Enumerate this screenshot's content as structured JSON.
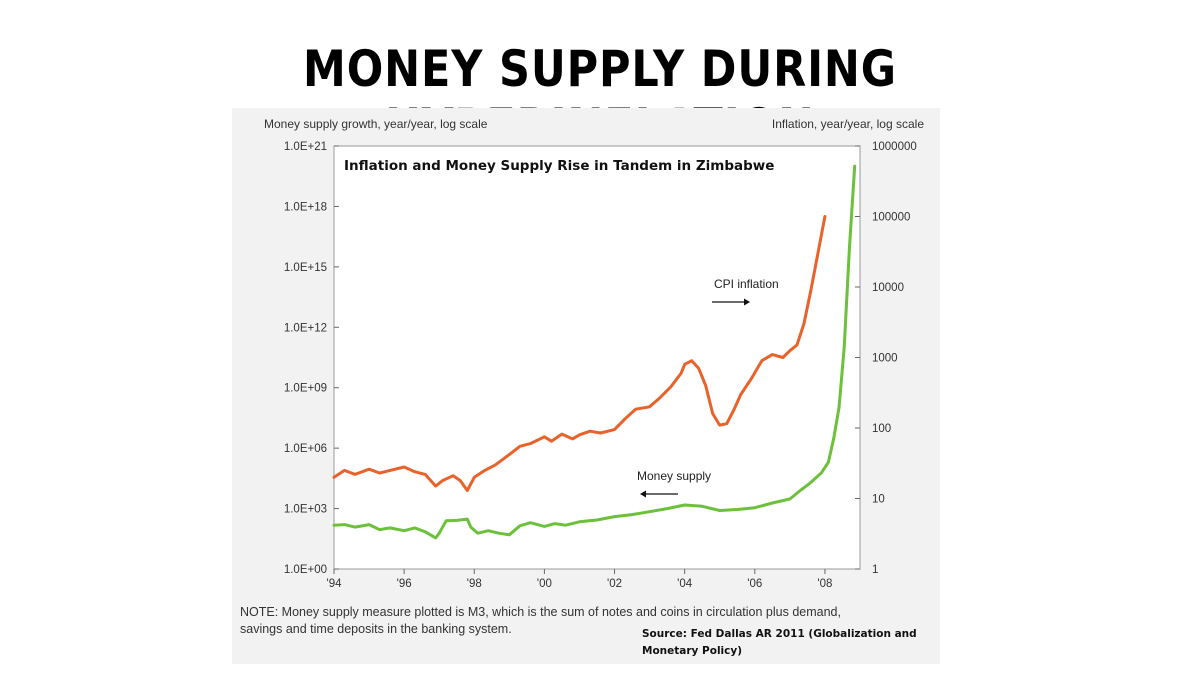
{
  "slide": {
    "title": "MONEY SUPPLY DURING HYPERINFLATION"
  },
  "chart_data": {
    "type": "line",
    "title": "Inflation and Money Supply Rise in Tandem in Zimbabwe",
    "left_axis_label": "Money supply growth, year/year, log scale",
    "right_axis_label": "Inflation, year/year, log scale",
    "x_tick_labels": [
      "'94",
      "'96",
      "'98",
      "'00",
      "'02",
      "'04",
      "'06",
      "'08"
    ],
    "x_ticks": [
      1994,
      1996,
      1998,
      2000,
      2002,
      2004,
      2006,
      2008
    ],
    "xlim": [
      1994,
      2009
    ],
    "left_scale": "log",
    "left_ylim": [
      1,
      1e+21
    ],
    "left_ticks": [
      1,
      1000.0,
      1000000.0,
      1000000000.0,
      1000000000000.0,
      1000000000000000.0,
      1e+18,
      1e+21
    ],
    "left_tick_labels": [
      "1.0E+00",
      "1.0E+03",
      "1.0E+06",
      "1.0E+09",
      "1.0E+12",
      "1.0E+15",
      "1.0E+18",
      "1.0E+21"
    ],
    "right_scale": "log",
    "right_ylim": [
      1,
      1000000
    ],
    "right_ticks": [
      1,
      10,
      100,
      1000,
      10000,
      100000,
      1000000
    ],
    "right_tick_labels": [
      "1",
      "10",
      "100",
      "1000",
      "10000",
      "100000",
      "1000000"
    ],
    "grid": false,
    "series": [
      {
        "name": "CPI inflation",
        "axis": "right",
        "color": "#e8622a",
        "x": [
          1994.0,
          1994.3,
          1994.6,
          1995.0,
          1995.3,
          1995.6,
          1996.0,
          1996.3,
          1996.6,
          1996.9,
          1997.1,
          1997.4,
          1997.6,
          1997.8,
          1998.0,
          1998.3,
          1998.6,
          1999.0,
          1999.3,
          1999.6,
          2000.0,
          2000.2,
          2000.5,
          2000.8,
          2001.0,
          2001.3,
          2001.6,
          2002.0,
          2002.3,
          2002.6,
          2003.0,
          2003.3,
          2003.6,
          2003.9,
          2004.0,
          2004.2,
          2004.4,
          2004.6,
          2004.8,
          2005.0,
          2005.2,
          2005.4,
          2005.6,
          2005.9,
          2006.2,
          2006.5,
          2006.8,
          2007.0,
          2007.2,
          2007.4,
          2007.6,
          2007.8,
          2008.0
        ],
        "values": [
          20,
          25,
          22,
          26,
          23,
          25,
          28,
          24,
          22,
          15,
          18,
          21,
          18,
          13,
          20,
          25,
          30,
          42,
          55,
          60,
          75,
          65,
          82,
          70,
          80,
          90,
          85,
          95,
          135,
          185,
          200,
          270,
          380,
          600,
          800,
          900,
          700,
          400,
          160,
          110,
          115,
          180,
          300,
          500,
          900,
          1100,
          1000,
          1250,
          1500,
          3000,
          9000,
          30000,
          100000
        ]
      },
      {
        "name": "Money supply",
        "axis": "left",
        "color": "#6cc03a",
        "x": [
          1994.0,
          1994.3,
          1994.6,
          1995.0,
          1995.3,
          1995.6,
          1996.0,
          1996.3,
          1996.6,
          1996.9,
          1997.0,
          1997.2,
          1997.5,
          1997.8,
          1997.9,
          1998.1,
          1998.4,
          1998.7,
          1999.0,
          1999.3,
          1999.6,
          2000.0,
          2000.3,
          2000.6,
          2001.0,
          2001.5,
          2002.0,
          2002.5,
          2003.0,
          2003.5,
          2004.0,
          2004.5,
          2005.0,
          2005.5,
          2006.0,
          2006.5,
          2007.0,
          2007.3,
          2007.6,
          2007.9,
          2008.1,
          2008.25,
          2008.4,
          2008.55,
          2008.7,
          2008.85
        ],
        "values": [
          150,
          160,
          120,
          160,
          90,
          110,
          80,
          110,
          70,
          35,
          60,
          250,
          260,
          300,
          120,
          60,
          80,
          60,
          50,
          140,
          200,
          130,
          180,
          150,
          220,
          270,
          400,
          500,
          700,
          1000,
          1500,
          1300,
          800,
          900,
          1100,
          1900,
          3000,
          8000,
          20000,
          60000,
          200000,
          3000000.0,
          100000000.0,
          100000000000.0,
          1e+16,
          1e+20
        ]
      }
    ],
    "annotations": [
      {
        "text": "CPI inflation",
        "arrow": "right"
      },
      {
        "text": "Money supply",
        "arrow": "left"
      }
    ],
    "note": "NOTE: Money supply measure plotted is M3, which is the sum of notes and coins in circulation plus demand, savings and time deposits in the banking system.",
    "source": "Source: Fed Dallas AR 2011 (Globalization and Monetary Policy)"
  }
}
